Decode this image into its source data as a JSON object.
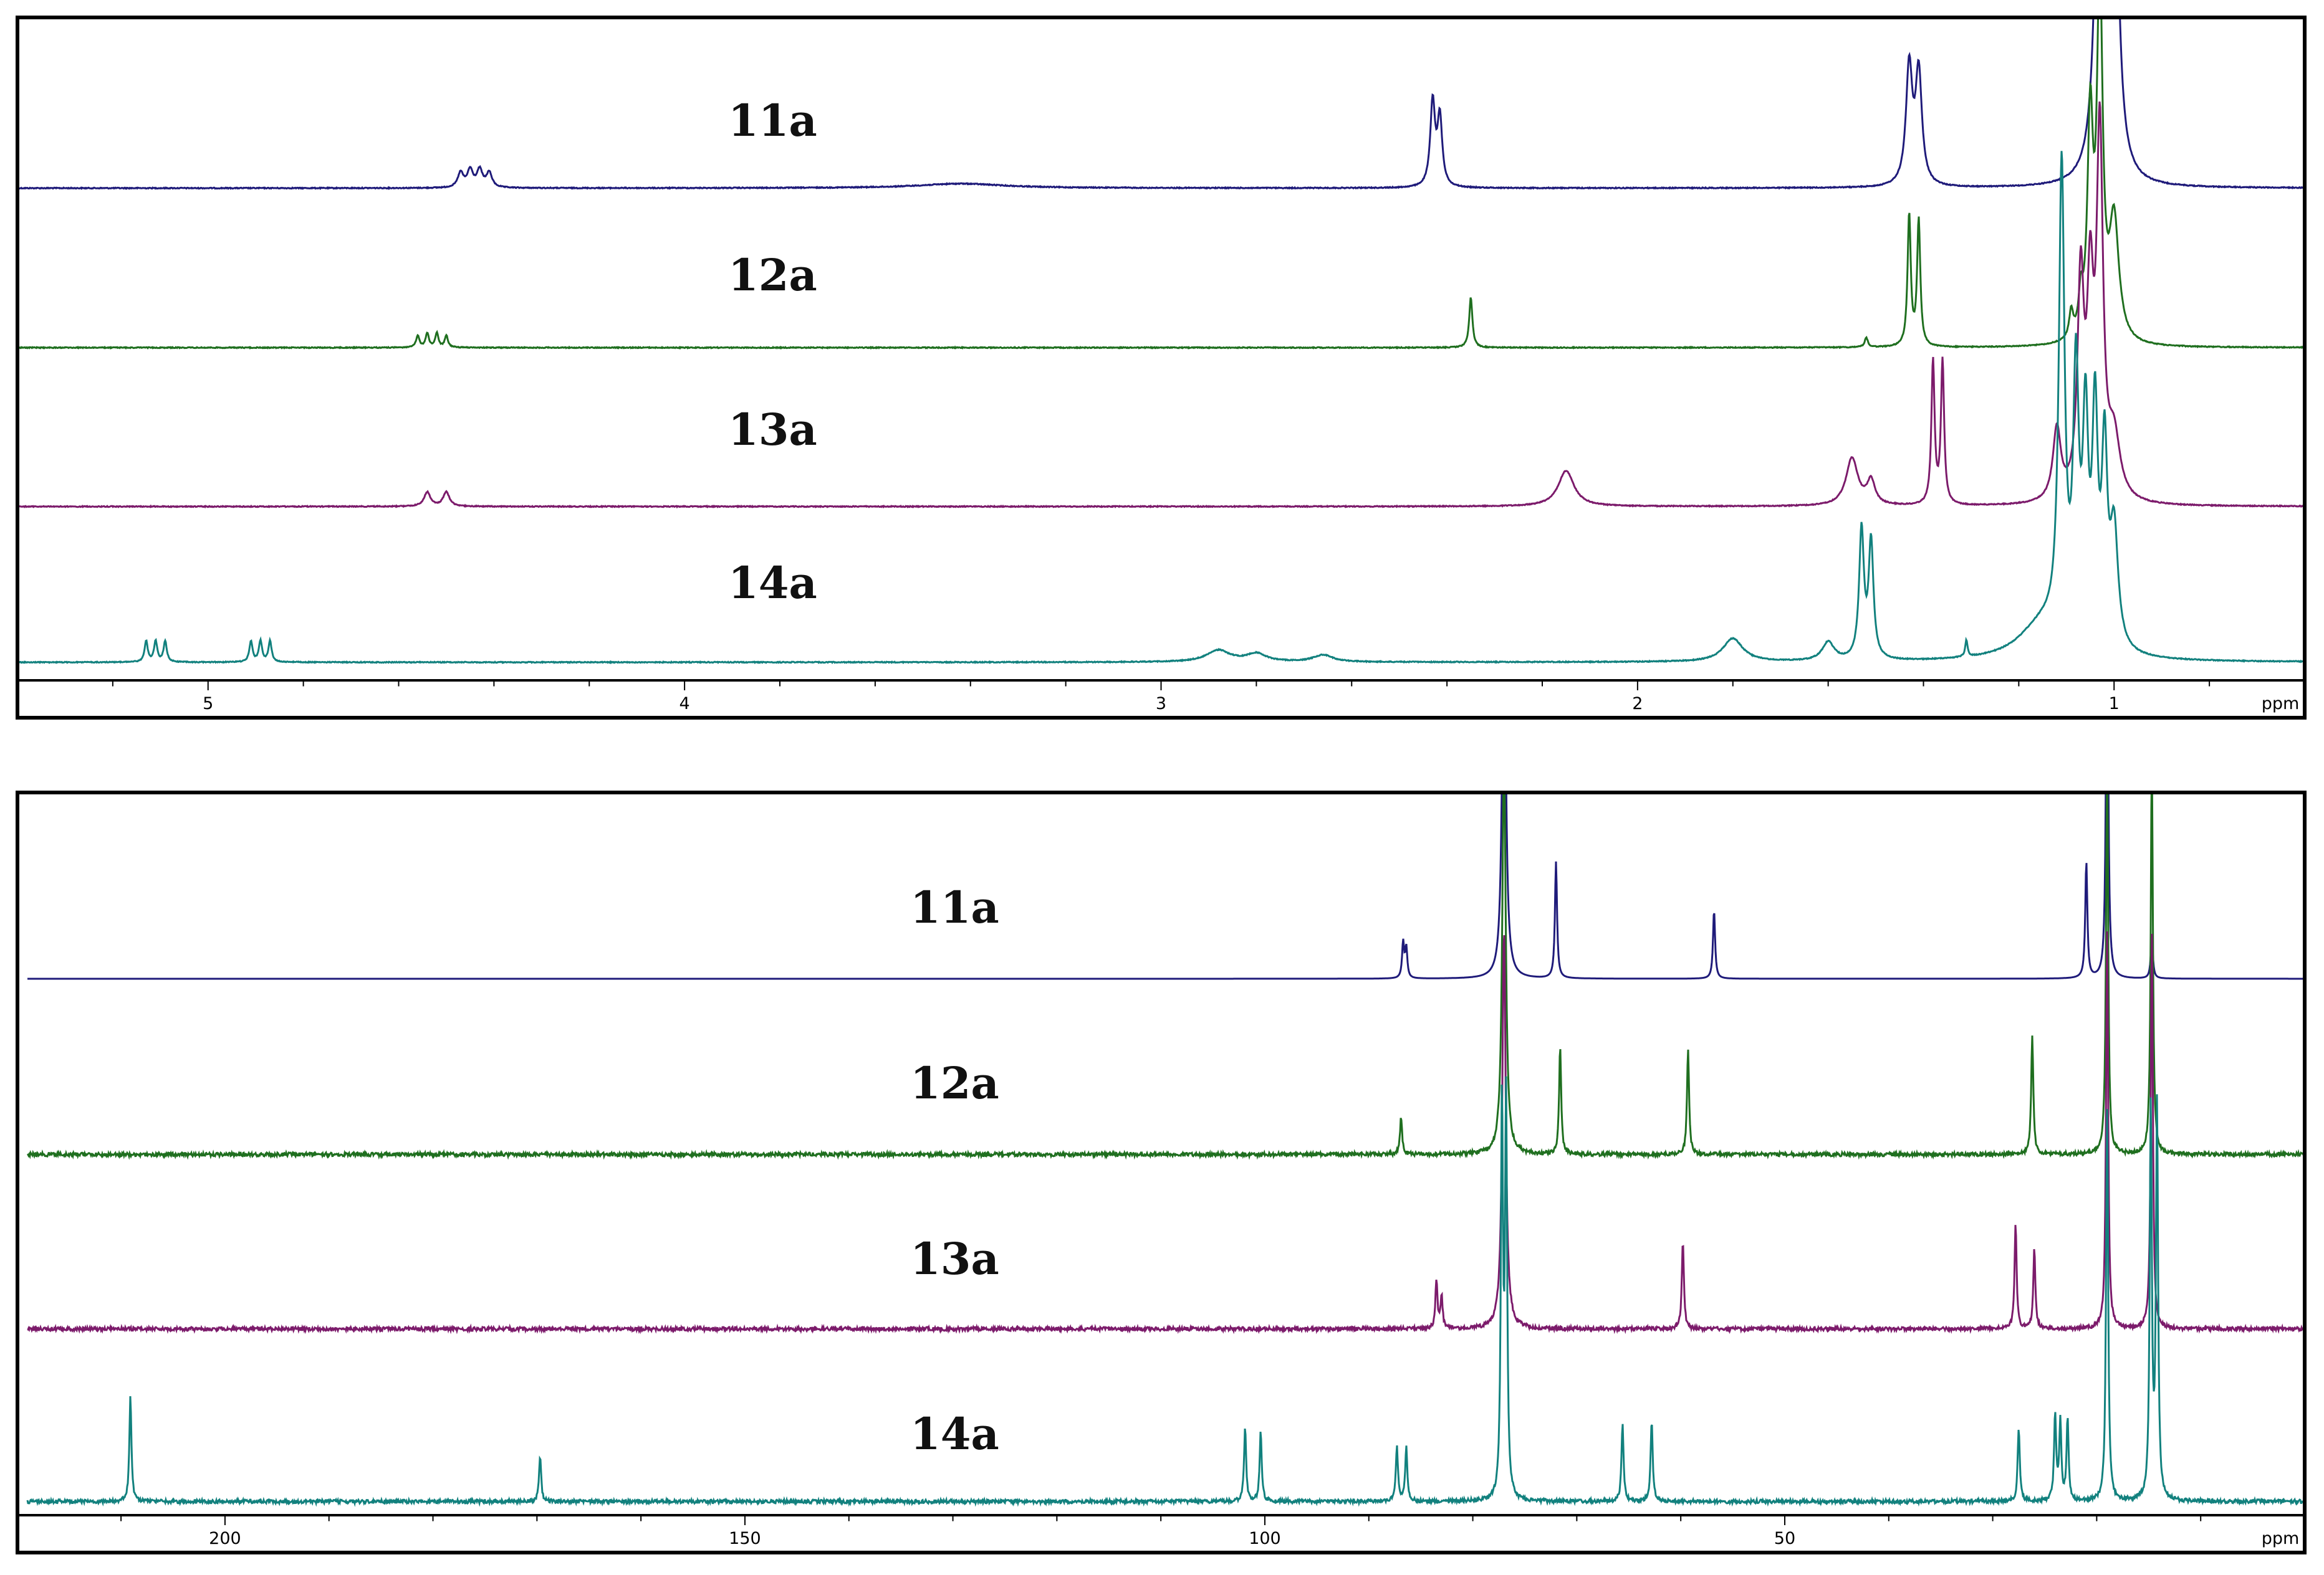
{
  "chart_data": [
    {
      "type": "line",
      "axis_unit": "ppm",
      "xlim": [
        5.4,
        0.6
      ],
      "ticks": [
        5,
        4,
        3,
        2,
        1
      ],
      "grid": false,
      "series": [
        {
          "name": "11a",
          "color": "#1f1b7a",
          "peaks": [
            {
              "x": 4.47,
              "h": 0.12,
              "w": 0.007
            },
            {
              "x": 4.45,
              "h": 0.14,
              "w": 0.007
            },
            {
              "x": 4.43,
              "h": 0.14,
              "w": 0.007
            },
            {
              "x": 4.41,
              "h": 0.12,
              "w": 0.007
            },
            {
              "x": 3.42,
              "h": 0.036,
              "w": 0.11
            },
            {
              "x": 2.43,
              "h": 0.68,
              "w": 0.006
            },
            {
              "x": 2.415,
              "h": 0.55,
              "w": 0.006
            },
            {
              "x": 1.43,
              "h": 0.95,
              "w": 0.008
            },
            {
              "x": 1.41,
              "h": 0.9,
              "w": 0.008
            },
            {
              "x": 1.03,
              "h": 3.5,
              "w": 0.01
            },
            {
              "x": 1.0,
              "h": 3.0,
              "w": 0.01
            }
          ]
        },
        {
          "name": "12a",
          "color": "#1f6f1f",
          "peaks": [
            {
              "x": 4.56,
              "h": 0.1,
              "w": 0.004
            },
            {
              "x": 4.54,
              "h": 0.12,
              "w": 0.004
            },
            {
              "x": 4.52,
              "h": 0.12,
              "w": 0.004
            },
            {
              "x": 4.5,
              "h": 0.1,
              "w": 0.004
            },
            {
              "x": 2.35,
              "h": 0.42,
              "w": 0.004
            },
            {
              "x": 1.52,
              "h": 0.08,
              "w": 0.004
            },
            {
              "x": 1.43,
              "h": 1.1,
              "w": 0.004
            },
            {
              "x": 1.41,
              "h": 1.05,
              "w": 0.004
            },
            {
              "x": 1.09,
              "h": 0.22,
              "w": 0.005
            },
            {
              "x": 1.07,
              "h": 0.3,
              "w": 0.005
            },
            {
              "x": 1.05,
              "h": 1.8,
              "w": 0.007
            },
            {
              "x": 1.03,
              "h": 3.0,
              "w": 0.007
            },
            {
              "x": 1.0,
              "h": 1.0,
              "w": 0.012
            }
          ]
        },
        {
          "name": "13a",
          "color": "#7c1b6b",
          "peaks": [
            {
              "x": 4.54,
              "h": 0.12,
              "w": 0.008
            },
            {
              "x": 4.5,
              "h": 0.12,
              "w": 0.008
            },
            {
              "x": 2.15,
              "h": 0.3,
              "w": 0.02
            },
            {
              "x": 1.55,
              "h": 0.4,
              "w": 0.015
            },
            {
              "x": 1.51,
              "h": 0.2,
              "w": 0.01
            },
            {
              "x": 1.38,
              "h": 1.2,
              "w": 0.004
            },
            {
              "x": 1.36,
              "h": 1.2,
              "w": 0.004
            },
            {
              "x": 1.12,
              "h": 0.6,
              "w": 0.01
            },
            {
              "x": 1.07,
              "h": 1.8,
              "w": 0.008
            },
            {
              "x": 1.05,
              "h": 1.6,
              "w": 0.008
            },
            {
              "x": 1.03,
              "h": 3.0,
              "w": 0.008
            },
            {
              "x": 1.0,
              "h": 0.5,
              "w": 0.015
            }
          ]
        },
        {
          "name": "14a",
          "color": "#12817e",
          "peaks": [
            {
              "x": 5.13,
              "h": 0.18,
              "w": 0.004
            },
            {
              "x": 5.11,
              "h": 0.18,
              "w": 0.004
            },
            {
              "x": 5.09,
              "h": 0.18,
              "w": 0.004
            },
            {
              "x": 4.91,
              "h": 0.18,
              "w": 0.004
            },
            {
              "x": 4.89,
              "h": 0.18,
              "w": 0.004
            },
            {
              "x": 4.87,
              "h": 0.18,
              "w": 0.004
            },
            {
              "x": 2.88,
              "h": 0.1,
              "w": 0.03
            },
            {
              "x": 2.8,
              "h": 0.07,
              "w": 0.025
            },
            {
              "x": 2.66,
              "h": 0.06,
              "w": 0.025
            },
            {
              "x": 1.8,
              "h": 0.2,
              "w": 0.025
            },
            {
              "x": 1.6,
              "h": 0.16,
              "w": 0.015
            },
            {
              "x": 1.53,
              "h": 1.1,
              "w": 0.006
            },
            {
              "x": 1.51,
              "h": 1.0,
              "w": 0.006
            },
            {
              "x": 1.31,
              "h": 0.14,
              "w": 0.003
            },
            {
              "x": 1.15,
              "h": 0.3,
              "w": 0.06
            },
            {
              "x": 1.11,
              "h": 4.0,
              "w": 0.007
            },
            {
              "x": 1.08,
              "h": 2.2,
              "w": 0.007
            },
            {
              "x": 1.06,
              "h": 1.8,
              "w": 0.007
            },
            {
              "x": 1.04,
              "h": 1.9,
              "w": 0.007
            },
            {
              "x": 1.02,
              "h": 1.6,
              "w": 0.007
            },
            {
              "x": 1.0,
              "h": 1.0,
              "w": 0.01
            }
          ]
        }
      ]
    },
    {
      "type": "line",
      "axis_unit": "ppm",
      "xlim": [
        219,
        0
      ],
      "ticks": [
        200,
        150,
        100,
        50
      ],
      "grid": false,
      "series": [
        {
          "name": "11a",
          "color": "#1f1b7a",
          "peaks": [
            {
              "x": 86.7,
              "h": 0.26,
              "w": 0.12
            },
            {
              "x": 86.4,
              "h": 0.22,
              "w": 0.12
            },
            {
              "x": 77.0,
              "h": 3.0,
              "w": 0.2
            },
            {
              "x": 72.0,
              "h": 0.85,
              "w": 0.12
            },
            {
              "x": 56.8,
              "h": 0.5,
              "w": 0.12
            },
            {
              "x": 21.0,
              "h": 0.85,
              "w": 0.12
            },
            {
              "x": 19.0,
              "h": 3.0,
              "w": 0.12
            },
            {
              "x": 14.7,
              "h": 0.3,
              "w": 0.12
            }
          ]
        },
        {
          "name": "12a",
          "color": "#1f6f1f",
          "peaks": [
            {
              "x": 86.9,
              "h": 0.28,
              "w": 0.12
            },
            {
              "x": 77.0,
              "h": 3.0,
              "w": 0.2
            },
            {
              "x": 71.6,
              "h": 0.8,
              "w": 0.12
            },
            {
              "x": 59.3,
              "h": 0.8,
              "w": 0.12
            },
            {
              "x": 26.2,
              "h": 0.9,
              "w": 0.12
            },
            {
              "x": 19.0,
              "h": 3.0,
              "w": 0.12
            },
            {
              "x": 14.7,
              "h": 3.0,
              "w": 0.12
            }
          ]
        },
        {
          "name": "13a",
          "color": "#7c1b6b",
          "peaks": [
            {
              "x": 83.5,
              "h": 0.36,
              "w": 0.12
            },
            {
              "x": 83.0,
              "h": 0.24,
              "w": 0.12
            },
            {
              "x": 77.0,
              "h": 3.0,
              "w": 0.2
            },
            {
              "x": 59.8,
              "h": 0.66,
              "w": 0.12
            },
            {
              "x": 27.8,
              "h": 0.8,
              "w": 0.12
            },
            {
              "x": 26.0,
              "h": 0.6,
              "w": 0.12
            },
            {
              "x": 19.0,
              "h": 3.0,
              "w": 0.12
            },
            {
              "x": 14.7,
              "h": 3.0,
              "w": 0.12
            }
          ]
        },
        {
          "name": "14a",
          "color": "#12817e",
          "peaks": [
            {
              "x": 209.1,
              "h": 0.8,
              "w": 0.12
            },
            {
              "x": 169.7,
              "h": 0.35,
              "w": 0.12
            },
            {
              "x": 101.9,
              "h": 0.56,
              "w": 0.12
            },
            {
              "x": 100.4,
              "h": 0.53,
              "w": 0.12
            },
            {
              "x": 87.3,
              "h": 0.42,
              "w": 0.12
            },
            {
              "x": 86.4,
              "h": 0.42,
              "w": 0.12
            },
            {
              "x": 77.2,
              "h": 3.0,
              "w": 0.12
            },
            {
              "x": 76.8,
              "h": 3.0,
              "w": 0.12
            },
            {
              "x": 65.6,
              "h": 0.6,
              "w": 0.12
            },
            {
              "x": 62.8,
              "h": 0.62,
              "w": 0.12
            },
            {
              "x": 27.5,
              "h": 0.56,
              "w": 0.12
            },
            {
              "x": 24.0,
              "h": 0.66,
              "w": 0.12
            },
            {
              "x": 23.5,
              "h": 0.6,
              "w": 0.12
            },
            {
              "x": 22.8,
              "h": 0.62,
              "w": 0.12
            },
            {
              "x": 19.0,
              "h": 3.0,
              "w": 0.12
            },
            {
              "x": 14.8,
              "h": 3.0,
              "w": 0.12
            },
            {
              "x": 14.2,
              "h": 3.0,
              "w": 0.12
            }
          ]
        }
      ]
    }
  ]
}
